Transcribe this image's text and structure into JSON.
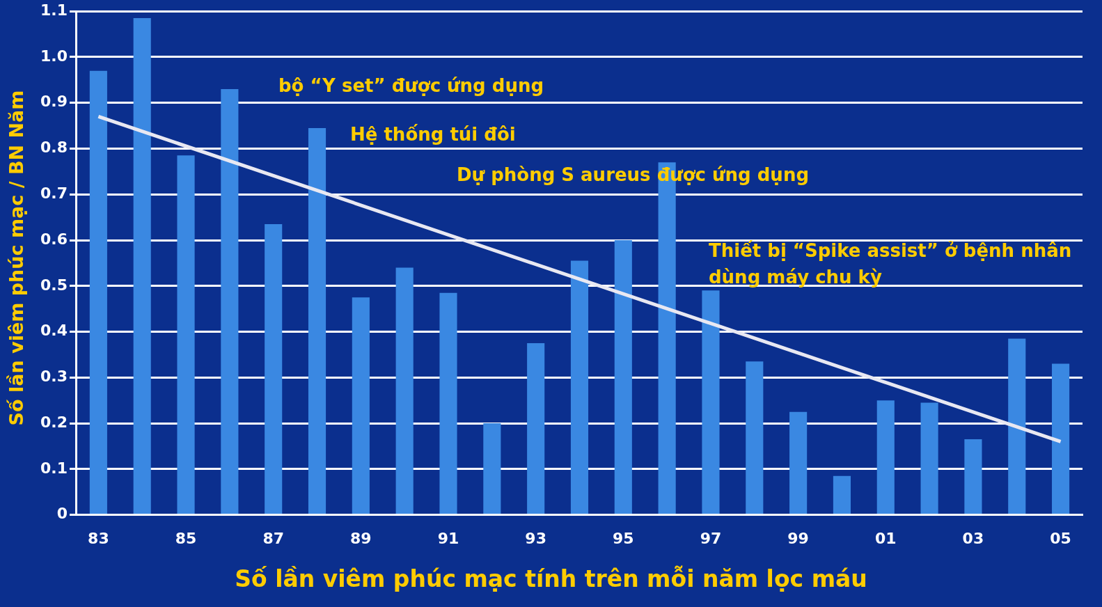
{
  "chart_data": {
    "type": "bar",
    "categories": [
      "83",
      null,
      "85",
      null,
      "87",
      null,
      "89",
      null,
      "91",
      null,
      "93",
      null,
      "95",
      null,
      "97",
      null,
      "99",
      null,
      "01",
      null,
      "03",
      null,
      "05"
    ],
    "series": [
      {
        "color": "#3a88e2",
        "values": [
          0.97,
          1.085,
          0.785,
          0.93,
          0.635,
          0.845,
          0.475,
          0.54,
          0.485,
          0.2,
          0.375,
          0.555,
          0.6,
          0.77,
          0.49,
          0.335,
          0.225,
          0.085,
          0.25,
          0.245,
          0.165,
          0.385,
          0.33
        ]
      },
      {
        "type": "line",
        "color": "#e8e8f2",
        "values": [
          0.87,
          null,
          null,
          null,
          null,
          null,
          null,
          null,
          null,
          null,
          null,
          null,
          null,
          null,
          null,
          null,
          null,
          null,
          null,
          null,
          null,
          null,
          0.16
        ]
      }
    ],
    "ylim": [
      0,
      1.1
    ],
    "yticks": [
      0,
      {
        "value": 0.1,
        "label": "0.1"
      },
      {
        "value": 0.2,
        "label": "0.2"
      },
      {
        "value": 0.3,
        "label": "0.3"
      },
      {
        "value": 0.4,
        "label": "0.4"
      },
      {
        "value": 0.5,
        "label": "0.5"
      },
      {
        "value": 0.6,
        "label": "0.6"
      },
      {
        "value": 0.7,
        "label": "0.7"
      },
      {
        "value": 0.8,
        "label": "0.8"
      },
      {
        "value": 0.9,
        "label": "0.9"
      },
      {
        "value": 1.0,
        "label": "1.0"
      },
      {
        "value": 1.1,
        "label": "1.1"
      }
    ],
    "grid": "y",
    "xlabel": "Số lần viêm phúc mạc tính trên mỗi năm lọc máu",
    "ylabel": "Số lần viêm phúc mạc / BN Năm",
    "annotations": [
      "bộ “Y set” được ứng dụng",
      "Hệ thống túi đôi",
      "Dự phòng S aureus được ứng dụng",
      "Thiết bị “Spike assist” ở bệnh nhân dùng máy chu kỳ"
    ]
  }
}
